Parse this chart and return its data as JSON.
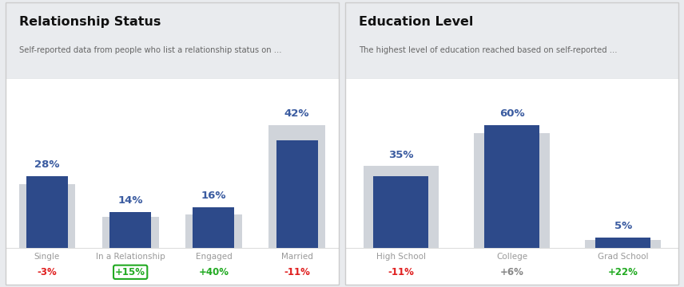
{
  "left_title": "Relationship Status",
  "left_subtitle": "Self-reported data from people who list a relationship status on ...",
  "right_title": "Education Level",
  "right_subtitle": "The highest level of education reached based on self-reported ...",
  "rel_categories": [
    "Single",
    "In a Relationship",
    "Engaged",
    "Married"
  ],
  "rel_values": [
    28,
    14,
    16,
    42
  ],
  "rel_bg_values": [
    25,
    12,
    13,
    48
  ],
  "rel_deltas": [
    "-3%",
    "+15%",
    "+40%",
    "-11%"
  ],
  "rel_delta_colors": [
    "#e02020",
    "#22aa22",
    "#22aa22",
    "#e02020"
  ],
  "rel_highlighted": [
    false,
    true,
    false,
    false
  ],
  "edu_categories": [
    "High School",
    "College",
    "Grad School"
  ],
  "edu_values": [
    35,
    60,
    5
  ],
  "edu_bg_values": [
    40,
    56,
    4
  ],
  "edu_deltas": [
    "-11%",
    "+6%",
    "+22%"
  ],
  "edu_delta_colors": [
    "#e02020",
    "#888888",
    "#22aa22"
  ],
  "edu_highlighted": [
    false,
    false,
    false
  ],
  "bar_color": "#2d4a8a",
  "bg_bar_color": "#d0d4da",
  "label_color": "#3a5ba0",
  "category_color": "#999999",
  "title_color": "#111111",
  "subtitle_color": "#666666",
  "bg_panel": "#e9ebee",
  "bg_chart": "#ffffff",
  "border_color": "#cccccc",
  "divider_color": "#dddddd"
}
